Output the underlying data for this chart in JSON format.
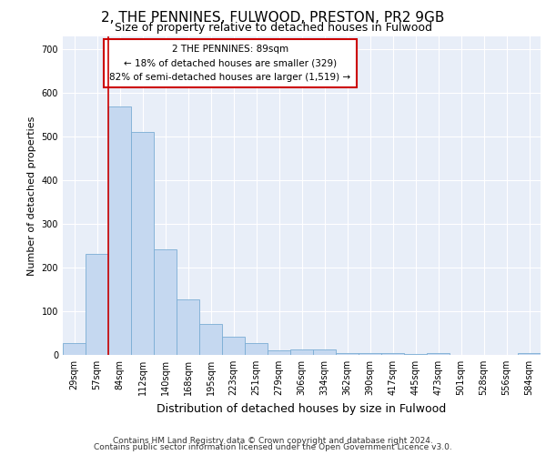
{
  "title": "2, THE PENNINES, FULWOOD, PRESTON, PR2 9GB",
  "subtitle": "Size of property relative to detached houses in Fulwood",
  "xlabel": "Distribution of detached houses by size in Fulwood",
  "ylabel": "Number of detached properties",
  "categories": [
    "29sqm",
    "57sqm",
    "84sqm",
    "112sqm",
    "140sqm",
    "168sqm",
    "195sqm",
    "223sqm",
    "251sqm",
    "279sqm",
    "306sqm",
    "334sqm",
    "362sqm",
    "390sqm",
    "417sqm",
    "445sqm",
    "473sqm",
    "501sqm",
    "528sqm",
    "556sqm",
    "584sqm"
  ],
  "values": [
    28,
    232,
    570,
    510,
    242,
    127,
    70,
    42,
    27,
    11,
    12,
    12,
    4,
    4,
    4,
    2,
    4,
    0,
    0,
    0,
    4
  ],
  "bar_color": "#c5d8f0",
  "bar_edge_color": "#7aadd4",
  "annotation_text": "2 THE PENNINES: 89sqm\n← 18% of detached houses are smaller (329)\n82% of semi-detached houses are larger (1,519) →",
  "annotation_box_color": "#ffffff",
  "annotation_box_edge": "#cc0000",
  "red_line_index": 2,
  "ylim": [
    0,
    730
  ],
  "yticks": [
    0,
    100,
    200,
    300,
    400,
    500,
    600,
    700
  ],
  "footer1": "Contains HM Land Registry data © Crown copyright and database right 2024.",
  "footer2": "Contains public sector information licensed under the Open Government Licence v3.0.",
  "plot_bg_color": "#e8eef8",
  "grid_color": "#ffffff",
  "title_fontsize": 11,
  "subtitle_fontsize": 9,
  "tick_fontsize": 7,
  "ylabel_fontsize": 8,
  "xlabel_fontsize": 9,
  "footer_fontsize": 6.5
}
